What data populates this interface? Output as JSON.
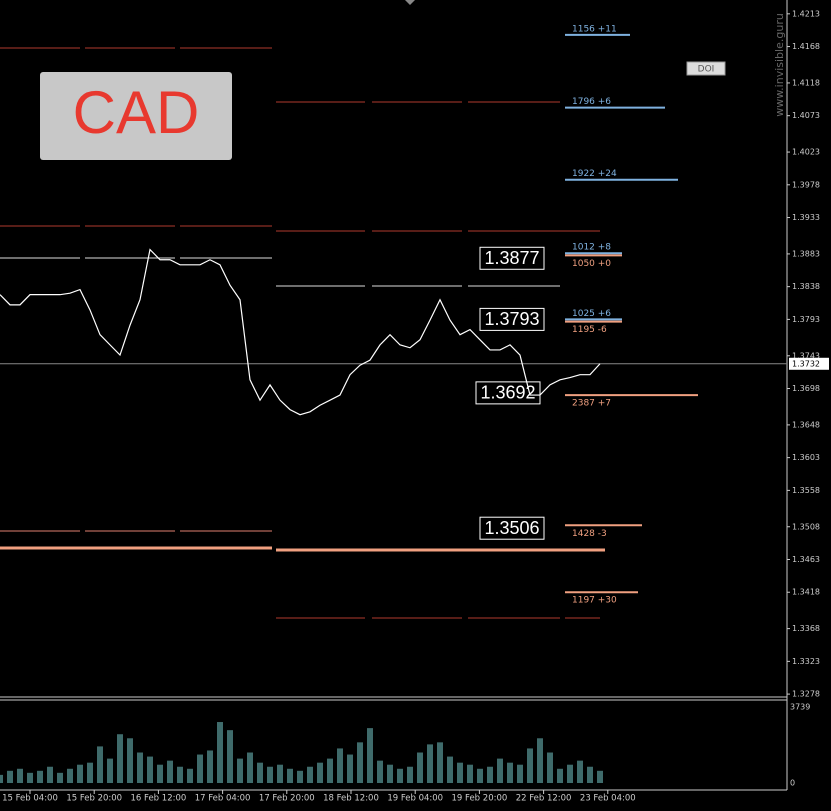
{
  "chart_data": {
    "type": "line",
    "title": "CAD",
    "watermark": "www.invisible.guru",
    "button": "DOI",
    "color": "#ffffff",
    "volume_color": "#3f6b6b",
    "ylim": [
      1.3274,
      1.4232
    ],
    "yticks": [
      1.4213,
      1.4168,
      1.4118,
      1.4073,
      1.4023,
      1.3978,
      1.3933,
      1.3883,
      1.3838,
      1.3793,
      1.3743,
      1.3698,
      1.3648,
      1.3603,
      1.3558,
      1.3508,
      1.3463,
      1.3418,
      1.3368,
      1.3323,
      1.3278
    ],
    "current_price": 1.3732,
    "x_labels": [
      "15 Feb 04:00",
      "15 Feb 20:00",
      "16 Feb 12:00",
      "17 Feb 04:00",
      "17 Feb 20:00",
      "18 Feb 12:00",
      "19 Feb 04:00",
      "19 Feb 20:00",
      "22 Feb 12:00",
      "23 Feb 04:00"
    ],
    "values": [
      1.3827,
      1.3813,
      1.3813,
      1.3827,
      1.3827,
      1.3827,
      1.3827,
      1.3829,
      1.3834,
      1.3806,
      1.3772,
      1.3758,
      1.3744,
      1.3785,
      1.382,
      1.3889,
      1.3875,
      1.3875,
      1.3868,
      1.3868,
      1.3868,
      1.3875,
      1.3868,
      1.384,
      1.382,
      1.371,
      1.3682,
      1.3703,
      1.3682,
      1.3669,
      1.3662,
      1.3666,
      1.3675,
      1.3682,
      1.3689,
      1.3717,
      1.373,
      1.3737,
      1.3758,
      1.3772,
      1.3758,
      1.3754,
      1.3765,
      1.3792,
      1.382,
      1.3792,
      1.3772,
      1.3779,
      1.3765,
      1.3751,
      1.3751,
      1.3758,
      1.3744,
      1.3689,
      1.3689,
      1.3703,
      1.371,
      1.3713,
      1.3717,
      1.3717,
      1.3732
    ],
    "volume": [
      400,
      600,
      700,
      500,
      600,
      800,
      500,
      700,
      900,
      1000,
      1800,
      1200,
      2400,
      2200,
      1500,
      1300,
      900,
      1100,
      800,
      700,
      1400,
      1600,
      3000,
      2600,
      1200,
      1500,
      1000,
      800,
      900,
      700,
      600,
      800,
      1000,
      1200,
      1700,
      1400,
      2000,
      2700,
      1100,
      900,
      700,
      800,
      1500,
      1900,
      2000,
      1300,
      1000,
      900,
      700,
      800,
      1200,
      1000,
      900,
      1700,
      2200,
      1500,
      700,
      900,
      1100,
      800,
      600
    ],
    "volume_lim": [
      0,
      3739
    ],
    "volume_ticks": [
      3739,
      0
    ],
    "price_boxes": [
      1.3877,
      1.3793,
      1.3692,
      1.3506
    ],
    "levels": [
      {
        "label": "1156 +11",
        "price": 1.4184,
        "color": "#7fb2e0"
      },
      {
        "label": "1796 +6",
        "price": 1.4084,
        "color": "#7fb2e0"
      },
      {
        "label": "1922 +24",
        "price": 1.3985,
        "color": "#7fb2e0"
      },
      {
        "label": "1012 +8",
        "price": 1.3884,
        "color": "#7fb2e0"
      },
      {
        "label": "1050 +0",
        "price": 1.3881,
        "color": "#f0a080"
      },
      {
        "label": "1025 +6",
        "price": 1.3793,
        "color": "#7fb2e0"
      },
      {
        "label": "1195 -6",
        "price": 1.379,
        "color": "#f0a080"
      },
      {
        "label": "2387 +7",
        "price": 1.3689,
        "color": "#f0a080"
      },
      {
        "label": "1428 -3",
        "price": 1.351,
        "color": "#f0a080"
      },
      {
        "label": "1197 +30",
        "price": 1.3418,
        "color": "#f0a080"
      }
    ]
  }
}
